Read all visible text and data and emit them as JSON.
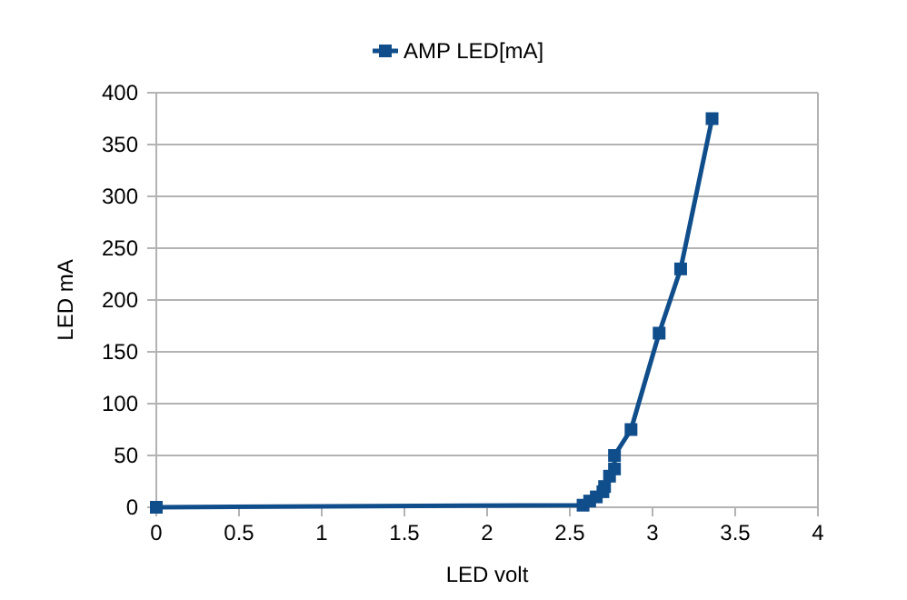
{
  "chart_data": {
    "type": "line",
    "xlabel": "LED volt",
    "ylabel": "LED mA",
    "xlim": [
      0,
      4
    ],
    "xticks": [
      0,
      0.5,
      1,
      1.5,
      2,
      2.5,
      3,
      3.5,
      4
    ],
    "ylim": [
      0,
      400
    ],
    "yticks": [
      0,
      50,
      100,
      150,
      200,
      250,
      300,
      350,
      400
    ],
    "grid": "y",
    "legend": "top",
    "marker": "square",
    "line_style": "solid",
    "series": [
      {
        "name": "AMP LED[mA]",
        "color": "#104e8b",
        "x": [
          0,
          2.58,
          2.62,
          2.66,
          2.7,
          2.71,
          2.74,
          2.77,
          2.77,
          2.87,
          3.04,
          3.17,
          3.36
        ],
        "values": [
          0,
          2,
          6,
          10,
          15,
          20,
          30,
          37,
          50,
          75,
          168,
          230,
          375
        ]
      }
    ]
  }
}
